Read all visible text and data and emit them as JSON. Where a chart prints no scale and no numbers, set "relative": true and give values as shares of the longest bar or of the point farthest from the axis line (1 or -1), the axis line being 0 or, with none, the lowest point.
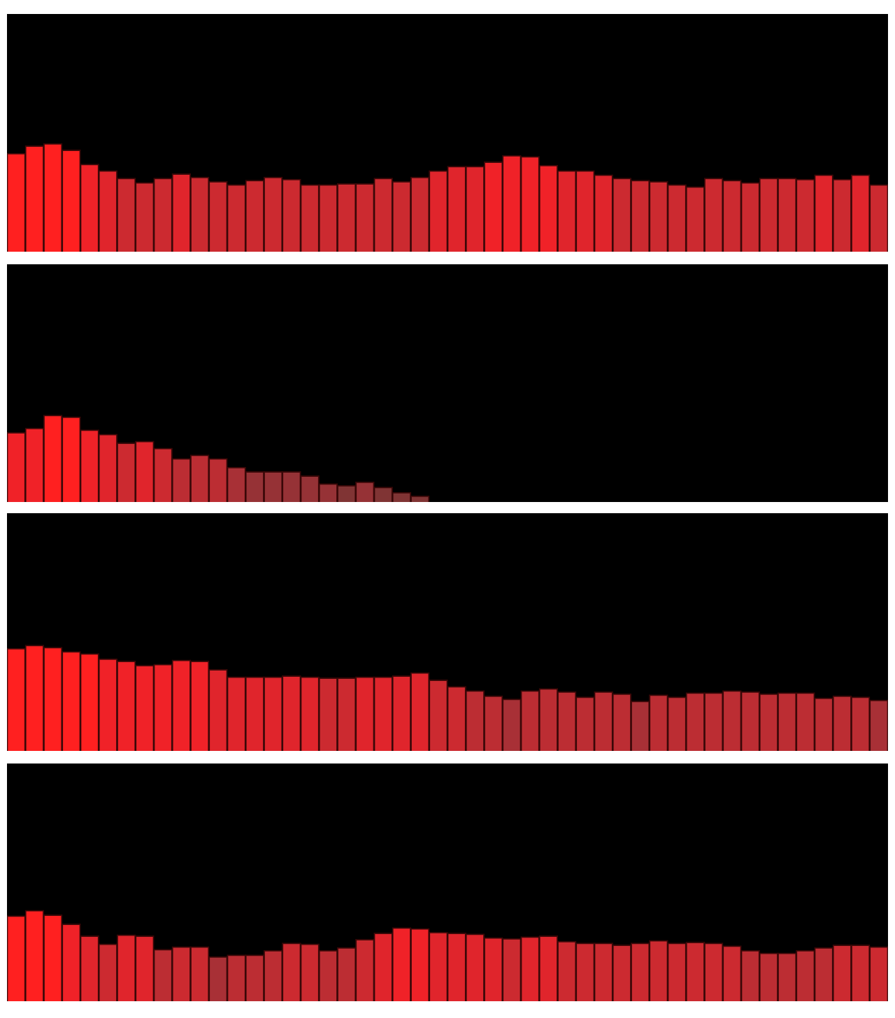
{
  "chart_data": [
    {
      "type": "bar",
      "relative": true,
      "categories": [
        null,
        null,
        null,
        null,
        null,
        null,
        null,
        null,
        null,
        null,
        null,
        null,
        null,
        null,
        null,
        null,
        null,
        null,
        null,
        null,
        null,
        null,
        null,
        null,
        null,
        null,
        null,
        null,
        null,
        null,
        null,
        null,
        null,
        null,
        null,
        null,
        null,
        null,
        null,
        null,
        null,
        null,
        null,
        null,
        null,
        null,
        null,
        null
      ],
      "values": [
        0.91,
        0.98,
        1.0,
        0.94,
        0.81,
        0.75,
        0.68,
        0.64,
        0.68,
        0.72,
        0.69,
        0.65,
        0.62,
        0.66,
        0.69,
        0.67,
        0.62,
        0.62,
        0.63,
        0.63,
        0.68,
        0.65,
        0.69,
        0.75,
        0.79,
        0.79,
        0.83,
        0.89,
        0.88,
        0.8,
        0.75,
        0.75,
        0.71,
        0.68,
        0.66,
        0.65,
        0.62,
        0.6,
        0.68,
        0.66,
        0.64,
        0.68,
        0.68,
        0.67,
        0.71,
        0.67,
        0.71,
        0.62
      ],
      "colors": [
        "#ff2020",
        "#ff2020",
        "#ff2020",
        "#ff2020",
        "#f02228",
        "#e0252c",
        "#cc2a30",
        "#cc2a30",
        "#cc2a30",
        "#e0252c",
        "#cc2a30",
        "#cc2a30",
        "#cc2a30",
        "#cc2a30",
        "#cc2a30",
        "#cc2a30",
        "#cc2a30",
        "#cc2a30",
        "#cc2a30",
        "#cc2a30",
        "#cc2a30",
        "#cc2a30",
        "#cc2a30",
        "#e0252c",
        "#e0252c",
        "#e0252c",
        "#f02228",
        "#f02228",
        "#f02228",
        "#f02228",
        "#e0252c",
        "#e0252c",
        "#e0252c",
        "#cc2a30",
        "#cc2a30",
        "#cc2a30",
        "#cc2a30",
        "#cc2a30",
        "#cc2a30",
        "#cc2a30",
        "#cc2a30",
        "#cc2a30",
        "#cc2a30",
        "#cc2a30",
        "#e0252c",
        "#cc2a30",
        "#e0252c",
        "#cc2a30"
      ]
    },
    {
      "type": "bar",
      "relative": true,
      "categories": [
        null,
        null,
        null,
        null,
        null,
        null,
        null,
        null,
        null,
        null,
        null,
        null,
        null,
        null,
        null,
        null,
        null,
        null,
        null,
        null,
        null,
        null,
        null,
        null,
        null,
        null,
        null,
        null,
        null,
        null,
        null,
        null,
        null,
        null,
        null,
        null,
        null,
        null,
        null,
        null,
        null,
        null,
        null,
        null,
        null,
        null,
        null,
        null
      ],
      "values": [
        0.8,
        0.85,
        1.0,
        0.98,
        0.83,
        0.78,
        0.68,
        0.7,
        0.62,
        0.5,
        0.54,
        0.5,
        0.4,
        0.35,
        0.35,
        0.35,
        0.3,
        0.21,
        0.19,
        0.23,
        0.17,
        0.11,
        0.07,
        0,
        0,
        0,
        0,
        0,
        0,
        0,
        0,
        0,
        0,
        0,
        0,
        0,
        0,
        0,
        0,
        0,
        0,
        0,
        0,
        0,
        0,
        0,
        0,
        0
      ],
      "colors": [
        "#f02228",
        "#f02228",
        "#ff2020",
        "#ff2020",
        "#f02228",
        "#e0252c",
        "#cc2a30",
        "#e0252c",
        "#cc2a30",
        "#bc2d33",
        "#bc2d33",
        "#bc2d33",
        "#a83036",
        "#963236",
        "#963236",
        "#963236",
        "#963236",
        "#963236",
        "#803434",
        "#963236",
        "#803434",
        "#803434",
        "#803434",
        "#803434",
        "#803434",
        "#803434",
        "#803434",
        "#803434",
        "#803434",
        "#803434",
        "#803434",
        "#803434",
        "#803434",
        "#803434",
        "#803434",
        "#803434",
        "#803434",
        "#803434",
        "#803434",
        "#803434",
        "#803434",
        "#803434",
        "#803434",
        "#803434",
        "#803434",
        "#803434",
        "#803434",
        "#803434"
      ]
    },
    {
      "type": "bar",
      "relative": true,
      "categories": [
        null,
        null,
        null,
        null,
        null,
        null,
        null,
        null,
        null,
        null,
        null,
        null,
        null,
        null,
        null,
        null,
        null,
        null,
        null,
        null,
        null,
        null,
        null,
        null,
        null,
        null,
        null,
        null,
        null,
        null,
        null,
        null,
        null,
        null,
        null,
        null,
        null,
        null,
        null,
        null,
        null,
        null,
        null,
        null,
        null,
        null,
        null,
        null
      ],
      "values": [
        0.97,
        1.0,
        0.98,
        0.94,
        0.92,
        0.87,
        0.85,
        0.81,
        0.82,
        0.86,
        0.85,
        0.77,
        0.7,
        0.7,
        0.7,
        0.71,
        0.7,
        0.69,
        0.69,
        0.7,
        0.7,
        0.71,
        0.74,
        0.67,
        0.61,
        0.57,
        0.52,
        0.49,
        0.57,
        0.59,
        0.56,
        0.51,
        0.56,
        0.54,
        0.47,
        0.53,
        0.51,
        0.55,
        0.55,
        0.57,
        0.56,
        0.54,
        0.55,
        0.55,
        0.5,
        0.52,
        0.51,
        0.48
      ],
      "colors": [
        "#ff2020",
        "#ff2020",
        "#ff2020",
        "#ff2020",
        "#ff2020",
        "#f02228",
        "#f02228",
        "#f02228",
        "#f02228",
        "#f02228",
        "#f02228",
        "#e0252c",
        "#e0252c",
        "#e0252c",
        "#e0252c",
        "#e0252c",
        "#e0252c",
        "#cc2a30",
        "#cc2a30",
        "#e0252c",
        "#e0252c",
        "#e0252c",
        "#e0252c",
        "#cc2a30",
        "#cc2a30",
        "#bc2d33",
        "#bc2d33",
        "#a83036",
        "#bc2d33",
        "#bc2d33",
        "#bc2d33",
        "#bc2d33",
        "#bc2d33",
        "#bc2d33",
        "#a83036",
        "#bc2d33",
        "#bc2d33",
        "#bc2d33",
        "#bc2d33",
        "#bc2d33",
        "#bc2d33",
        "#bc2d33",
        "#bc2d33",
        "#bc2d33",
        "#bc2d33",
        "#bc2d33",
        "#bc2d33",
        "#a83036"
      ]
    },
    {
      "type": "bar",
      "relative": true,
      "categories": [
        null,
        null,
        null,
        null,
        null,
        null,
        null,
        null,
        null,
        null,
        null,
        null,
        null,
        null,
        null,
        null,
        null,
        null,
        null,
        null,
        null,
        null,
        null,
        null,
        null,
        null,
        null,
        null,
        null,
        null,
        null,
        null,
        null,
        null,
        null,
        null,
        null,
        null,
        null,
        null,
        null,
        null,
        null,
        null,
        null,
        null,
        null,
        null
      ],
      "values": [
        0.94,
        1.0,
        0.95,
        0.85,
        0.72,
        0.63,
        0.73,
        0.72,
        0.57,
        0.6,
        0.6,
        0.49,
        0.51,
        0.51,
        0.56,
        0.64,
        0.63,
        0.56,
        0.59,
        0.68,
        0.75,
        0.81,
        0.8,
        0.76,
        0.75,
        0.74,
        0.7,
        0.69,
        0.71,
        0.72,
        0.66,
        0.64,
        0.64,
        0.62,
        0.64,
        0.67,
        0.64,
        0.65,
        0.64,
        0.61,
        0.56,
        0.53,
        0.53,
        0.56,
        0.59,
        0.62,
        0.62,
        0.6
      ],
      "colors": [
        "#ff2020",
        "#ff2020",
        "#ff2020",
        "#f02228",
        "#e0252c",
        "#cc2a30",
        "#e0252c",
        "#e0252c",
        "#bc2d33",
        "#cc2a30",
        "#cc2a30",
        "#a83036",
        "#bc2d33",
        "#bc2d33",
        "#bc2d33",
        "#cc2a30",
        "#cc2a30",
        "#bc2d33",
        "#bc2d33",
        "#cc2a30",
        "#e0252c",
        "#f02228",
        "#f02228",
        "#e0252c",
        "#e0252c",
        "#e0252c",
        "#e0252c",
        "#cc2a30",
        "#e0252c",
        "#e0252c",
        "#cc2a30",
        "#cc2a30",
        "#cc2a30",
        "#cc2a30",
        "#cc2a30",
        "#cc2a30",
        "#cc2a30",
        "#cc2a30",
        "#cc2a30",
        "#cc2a30",
        "#bc2d33",
        "#bc2d33",
        "#bc2d33",
        "#bc2d33",
        "#bc2d33",
        "#cc2a30",
        "#cc2a30",
        "#cc2a30"
      ]
    }
  ]
}
